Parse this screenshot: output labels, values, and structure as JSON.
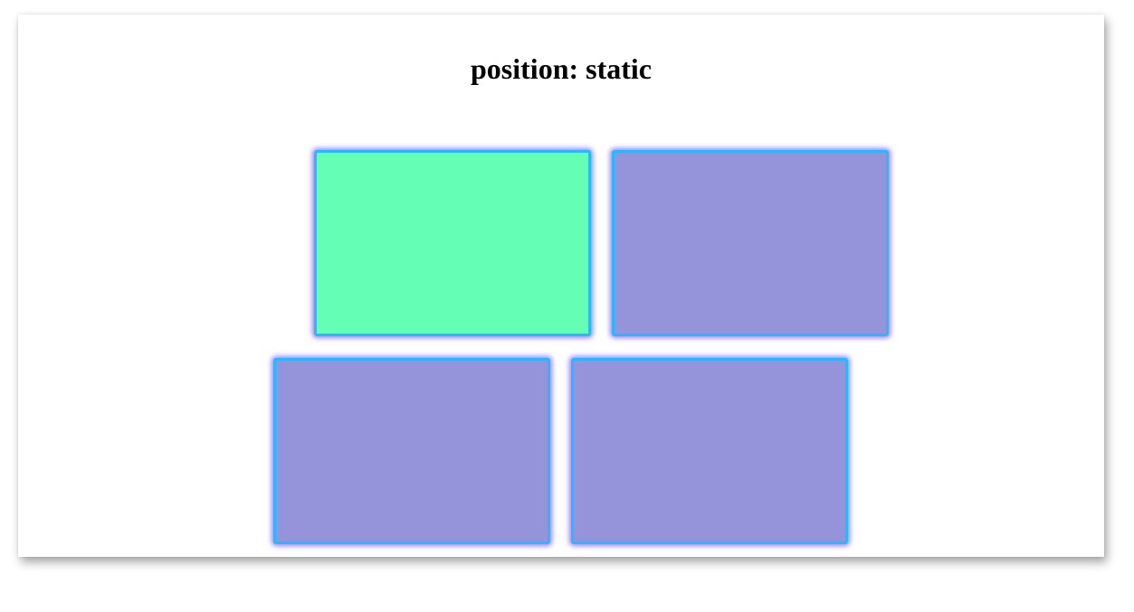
{
  "page": {
    "title": "position: static"
  },
  "boxes": [
    {
      "id": "box-1",
      "color": "#64ffb4"
    },
    {
      "id": "box-2",
      "color": "#9593d9"
    },
    {
      "id": "box-3",
      "color": "#9593d9"
    },
    {
      "id": "box-4",
      "color": "#9593d9"
    }
  ],
  "colors": {
    "border": "#29b8ff",
    "glow": "#6e5aff",
    "highlight_box": "#64ffb4",
    "default_box": "#9593d9"
  }
}
